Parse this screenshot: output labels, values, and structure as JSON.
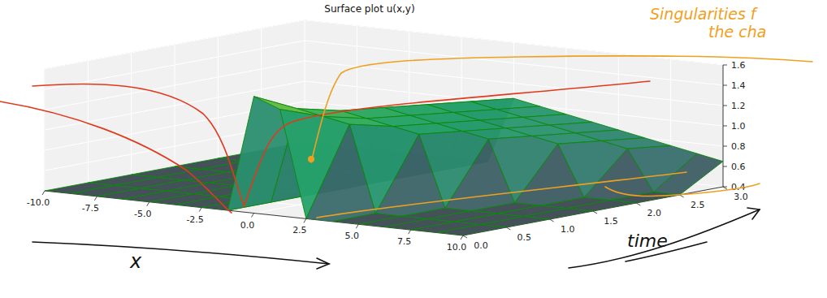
{
  "chart_data": {
    "type": "surface",
    "title": "Surface plot u(x,y)",
    "x": [
      -10,
      -8.75,
      -7.5,
      -6.25,
      -5,
      -3.75,
      -2.5,
      -1.25,
      0,
      1.25,
      2.5,
      3.75,
      5,
      6.25,
      7.5,
      8.75,
      10
    ],
    "y": [
      0,
      0.5,
      1,
      1.5,
      2,
      2.5,
      3
    ],
    "z": [
      [
        0.4,
        0.4,
        0.4,
        0.4,
        0.4,
        0.4,
        0.4,
        0.4,
        1.55,
        1.45,
        0.4,
        0.4,
        0.4,
        0.4,
        0.4,
        0.4,
        0.4
      ],
      [
        0.4,
        0.4,
        0.4,
        0.4,
        0.4,
        0.4,
        0.4,
        0.4,
        1.35,
        1.3,
        1.25,
        0.4,
        0.4,
        0.4,
        0.4,
        0.4,
        0.4
      ],
      [
        0.4,
        0.4,
        0.4,
        0.4,
        0.4,
        0.4,
        0.4,
        0.4,
        1.25,
        1.2,
        1.15,
        1.1,
        0.4,
        0.4,
        0.4,
        0.4,
        0.4
      ],
      [
        0.4,
        0.4,
        0.4,
        0.4,
        0.4,
        0.4,
        0.4,
        0.4,
        1.2,
        1.15,
        1.1,
        1.05,
        1.0,
        0.4,
        0.4,
        0.4,
        0.4
      ],
      [
        0.4,
        0.4,
        0.4,
        0.4,
        0.4,
        0.4,
        0.4,
        0.4,
        1.15,
        1.1,
        1.05,
        1.0,
        0.95,
        0.9,
        0.4,
        0.4,
        0.4
      ],
      [
        0.4,
        0.4,
        0.4,
        0.4,
        0.4,
        0.4,
        0.4,
        0.4,
        1.1,
        1.05,
        1.0,
        0.95,
        0.9,
        0.85,
        0.8,
        0.4,
        0.4
      ],
      [
        0.4,
        0.4,
        0.4,
        0.4,
        0.4,
        0.4,
        0.4,
        0.4,
        1.05,
        1.0,
        0.95,
        0.9,
        0.85,
        0.8,
        0.75,
        0.7,
        0.65
      ]
    ],
    "xlim": [
      -10,
      10
    ],
    "ylim": [
      0,
      3
    ],
    "zlim": [
      0.4,
      1.6
    ],
    "xticks": [
      {
        "value": -10,
        "label": "-10.0"
      },
      -7.5,
      {
        "value": -5,
        "label": "-5.0"
      },
      -2.5,
      {
        "value": 0,
        "label": "0.0"
      },
      2.5,
      {
        "value": 5,
        "label": "5.0"
      },
      7.5,
      {
        "value": 10,
        "label": "10.0"
      }
    ],
    "yticks": [
      {
        "value": 0,
        "label": "0.0"
      },
      0.5,
      {
        "value": 1,
        "label": "1.0"
      },
      1.5,
      {
        "value": 2,
        "label": "2.0"
      },
      2.5,
      {
        "value": 3,
        "label": "3.0"
      }
    ],
    "zticks": [
      0.4,
      0.6,
      0.8,
      {
        "value": 1,
        "label": "1.0"
      },
      1.2,
      1.4,
      1.6
    ],
    "grid": true,
    "annotations": [
      "Singularities f",
      "the cha",
      "x",
      "time"
    ]
  }
}
